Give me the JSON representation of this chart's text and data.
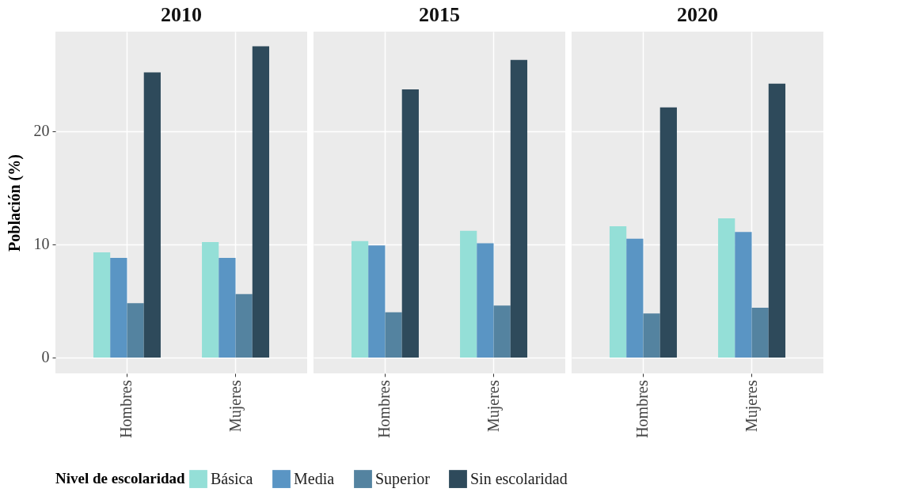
{
  "chart_data": [
    {
      "type": "bar",
      "title": "2010",
      "ylabel": "Población (%)",
      "categories": [
        "Hombres",
        "Mujeres"
      ],
      "ylim": [
        -1.4,
        28.8
      ],
      "yticks": [
        0,
        10,
        20
      ],
      "grid": true,
      "legend": "bottom",
      "legend_title": "Nivel de escolaridad",
      "series": [
        {
          "name": "Básica",
          "color": "#94dfd7",
          "values": [
            9.3,
            10.2
          ]
        },
        {
          "name": "Media",
          "color": "#5a95c4",
          "values": [
            8.8,
            8.8
          ]
        },
        {
          "name": "Superior",
          "color": "#5483a0",
          "values": [
            4.8,
            5.6
          ]
        },
        {
          "name": "Sin escolaridad",
          "color": "#2e4a5b",
          "values": [
            25.2,
            27.5
          ]
        }
      ]
    },
    {
      "type": "bar",
      "title": "2015",
      "categories": [
        "Hombres",
        "Mujeres"
      ],
      "ylim": [
        -1.4,
        28.8
      ],
      "yticks": [
        0,
        10,
        20
      ],
      "grid": true,
      "tick_labels": "x",
      "series": [
        {
          "name": "Básica",
          "color": "#94dfd7",
          "values": [
            10.3,
            11.2
          ]
        },
        {
          "name": "Media",
          "color": "#5a95c4",
          "values": [
            9.9,
            10.1
          ]
        },
        {
          "name": "Superior",
          "color": "#5483a0",
          "values": [
            4.0,
            4.6
          ]
        },
        {
          "name": "Sin escolaridad",
          "color": "#2e4a5b",
          "values": [
            23.7,
            26.3
          ]
        }
      ]
    },
    {
      "type": "bar",
      "title": "2020",
      "categories": [
        "Hombres",
        "Mujeres"
      ],
      "ylim": [
        -1.4,
        28.8
      ],
      "yticks": [
        0,
        10,
        20
      ],
      "grid": true,
      "tick_labels": "x",
      "series": [
        {
          "name": "Básica",
          "color": "#94dfd7",
          "values": [
            11.6,
            12.3
          ]
        },
        {
          "name": "Media",
          "color": "#5a95c4",
          "values": [
            10.5,
            11.1
          ]
        },
        {
          "name": "Superior",
          "color": "#5483a0",
          "values": [
            3.9,
            4.4
          ]
        },
        {
          "name": "Sin escolaridad",
          "color": "#2e4a5b",
          "values": [
            22.1,
            24.2
          ]
        }
      ]
    }
  ]
}
